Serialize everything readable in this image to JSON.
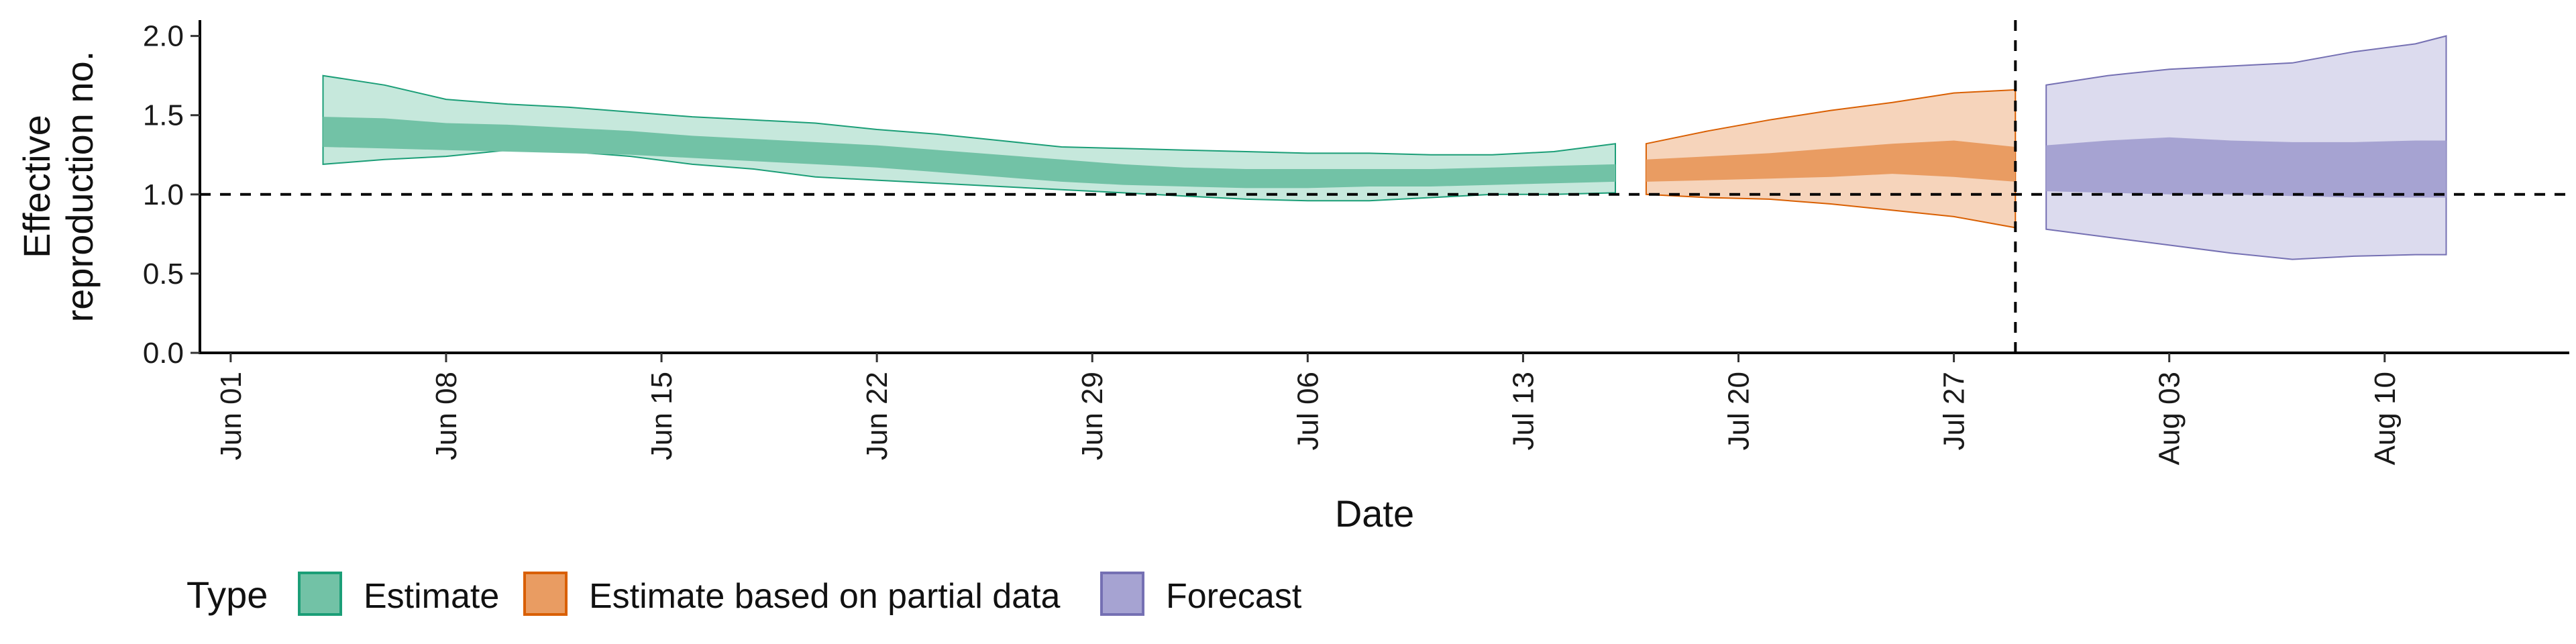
{
  "chart_data": {
    "type": "area",
    "xlabel": "Date",
    "ylabel_lines": [
      "Effective",
      "reproduction no."
    ],
    "ylim": [
      0,
      2.1
    ],
    "yticks": [
      0.0,
      0.5,
      1.0,
      1.5,
      2.0
    ],
    "ytick_labels": [
      "0.0",
      "0.5",
      "1.0",
      "1.5",
      "2.0"
    ],
    "xlim": [
      "2020-05-31",
      "2020-08-16"
    ],
    "xticks": [
      "2020-06-01",
      "2020-06-08",
      "2020-06-15",
      "2020-06-22",
      "2020-06-29",
      "2020-07-06",
      "2020-07-13",
      "2020-07-20",
      "2020-07-27",
      "2020-08-03",
      "2020-08-10"
    ],
    "xtick_labels": [
      "Jun 01",
      "Jun 08",
      "Jun 15",
      "Jun 22",
      "Jun 29",
      "Jul 06",
      "Jul 13",
      "Jul 20",
      "Jul 27",
      "Aug 03",
      "Aug 10"
    ],
    "reference_hline": 1.0,
    "reference_vline": "2020-07-29",
    "legend": {
      "title": "Type",
      "position": "bottom-left",
      "entries": [
        {
          "label": "Estimate",
          "fill": "#72c2a6",
          "stroke": "#1b9e77"
        },
        {
          "label": "Estimate based on partial data",
          "fill": "#e99c62",
          "stroke": "#d95f02"
        },
        {
          "label": "Forecast",
          "fill": "#a6a3d2",
          "stroke": "#7570b3"
        }
      ]
    },
    "series": [
      {
        "name": "Estimate",
        "inner_color": "#72c2a6",
        "outer_color": "#c6e8dc",
        "edge_color": "#1b9e77",
        "x": [
          "2020-06-04",
          "2020-06-06",
          "2020-06-08",
          "2020-06-10",
          "2020-06-12",
          "2020-06-14",
          "2020-06-16",
          "2020-06-18",
          "2020-06-20",
          "2020-06-22",
          "2020-06-24",
          "2020-06-26",
          "2020-06-28",
          "2020-06-30",
          "2020-07-02",
          "2020-07-04",
          "2020-07-06",
          "2020-07-08",
          "2020-07-10",
          "2020-07-12",
          "2020-07-14",
          "2020-07-16"
        ],
        "inner_lo": [
          1.3,
          1.29,
          1.28,
          1.27,
          1.26,
          1.25,
          1.23,
          1.21,
          1.19,
          1.17,
          1.14,
          1.11,
          1.08,
          1.06,
          1.05,
          1.04,
          1.04,
          1.05,
          1.05,
          1.06,
          1.07,
          1.08
        ],
        "inner_hi": [
          1.49,
          1.48,
          1.45,
          1.44,
          1.42,
          1.4,
          1.37,
          1.35,
          1.33,
          1.31,
          1.28,
          1.25,
          1.22,
          1.19,
          1.17,
          1.16,
          1.16,
          1.16,
          1.16,
          1.17,
          1.18,
          1.19
        ],
        "outer_lo": [
          1.19,
          1.22,
          1.24,
          1.28,
          1.27,
          1.24,
          1.19,
          1.16,
          1.11,
          1.09,
          1.07,
          1.05,
          1.03,
          1.01,
          0.99,
          0.97,
          0.96,
          0.96,
          0.98,
          1.0,
          1.0,
          1.01
        ],
        "outer_hi": [
          1.75,
          1.69,
          1.6,
          1.57,
          1.55,
          1.52,
          1.49,
          1.47,
          1.45,
          1.41,
          1.38,
          1.34,
          1.3,
          1.29,
          1.28,
          1.27,
          1.26,
          1.26,
          1.25,
          1.25,
          1.27,
          1.32
        ]
      },
      {
        "name": "Estimate based on partial data",
        "inner_color": "#e99c62",
        "outer_color": "#f6d4bb",
        "edge_color": "#d95f02",
        "x": [
          "2020-07-17",
          "2020-07-19",
          "2020-07-21",
          "2020-07-23",
          "2020-07-25",
          "2020-07-27",
          "2020-07-29"
        ],
        "inner_lo": [
          1.08,
          1.09,
          1.1,
          1.11,
          1.13,
          1.11,
          1.08
        ],
        "inner_hi": [
          1.22,
          1.24,
          1.26,
          1.29,
          1.32,
          1.34,
          1.3
        ],
        "outer_lo": [
          1.0,
          0.98,
          0.97,
          0.94,
          0.9,
          0.86,
          0.79
        ],
        "outer_hi": [
          1.32,
          1.4,
          1.47,
          1.53,
          1.58,
          1.64,
          1.66
        ]
      },
      {
        "name": "Forecast",
        "inner_color": "#a6a3d2",
        "outer_color": "#dcdbee",
        "edge_color": "#7570b3",
        "x": [
          "2020-07-30",
          "2020-08-01",
          "2020-08-03",
          "2020-08-05",
          "2020-08-07",
          "2020-08-09",
          "2020-08-11",
          "2020-08-12"
        ],
        "inner_lo": [
          1.02,
          1.01,
          1.0,
          1.0,
          0.99,
          0.98,
          0.98,
          0.98
        ],
        "inner_hi": [
          1.31,
          1.34,
          1.36,
          1.34,
          1.33,
          1.33,
          1.34,
          1.34
        ],
        "outer_lo": [
          0.78,
          0.73,
          0.68,
          0.63,
          0.59,
          0.61,
          0.62,
          0.62
        ],
        "outer_hi": [
          1.69,
          1.75,
          1.79,
          1.81,
          1.83,
          1.9,
          1.95,
          2.0
        ]
      }
    ]
  }
}
